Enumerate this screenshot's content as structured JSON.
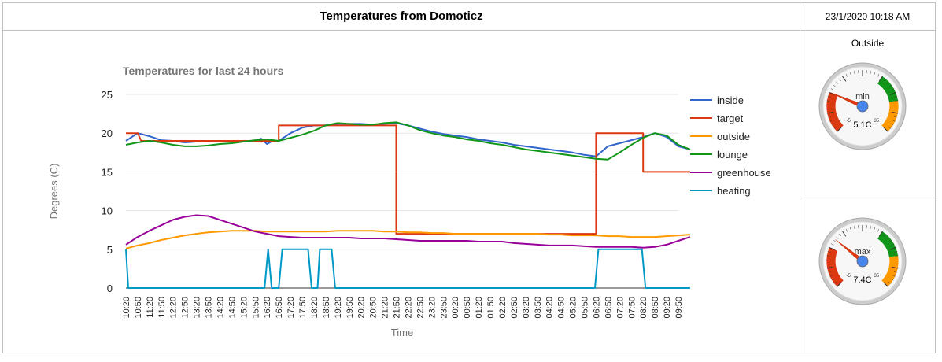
{
  "header": {
    "title": "Temperatures from Domoticz",
    "datetime": "23/1/2020 10:18 AM"
  },
  "gauges": {
    "section_title": "Outside",
    "items": [
      {
        "label": "min",
        "value": 5.1,
        "value_text": "5.1C",
        "min_tick": "-5",
        "max_tick": "35"
      },
      {
        "label": "max",
        "value": 7.4,
        "value_text": "7.4C",
        "min_tick": "-5",
        "max_tick": "35"
      }
    ],
    "scale": {
      "min": -5,
      "max": 35
    },
    "bands": [
      {
        "from": -5,
        "to": 5,
        "color": "#dc3912"
      },
      {
        "from": 20,
        "to": 27,
        "color": "#109618"
      },
      {
        "from": 27,
        "to": 35,
        "color": "#ff9900"
      }
    ]
  },
  "chart_data": {
    "type": "line",
    "title": "Temperatures for last 24 hours",
    "xlabel": "Time",
    "ylabel": "Degrees (C)",
    "ylim": [
      0,
      25
    ],
    "yticks": [
      0,
      5,
      10,
      15,
      20,
      25
    ],
    "grid": true,
    "legend": "right",
    "x": [
      "10:20",
      "10:50",
      "11:20",
      "11:50",
      "12:20",
      "12:50",
      "13:20",
      "13:50",
      "14:20",
      "14:50",
      "15:20",
      "15:50",
      "16:20",
      "16:50",
      "17:20",
      "17:50",
      "18:20",
      "18:50",
      "19:20",
      "19:50",
      "20:20",
      "20:50",
      "21:20",
      "21:50",
      "22:20",
      "22:50",
      "23:20",
      "23:50",
      "00:20",
      "00:50",
      "01:20",
      "01:50",
      "02:20",
      "02:50",
      "03:20",
      "03:50",
      "04:20",
      "04:50",
      "05:20",
      "05:50",
      "06:20",
      "06:50",
      "07:20",
      "07:50",
      "08:20",
      "08:50",
      "09:20",
      "09:50"
    ],
    "series": [
      {
        "name": "inside",
        "color": "#3366cc",
        "values": [
          [
            0,
            19.0
          ],
          [
            1,
            20.0
          ],
          [
            2,
            19.6
          ],
          [
            3,
            19.1
          ],
          [
            4,
            19.0
          ],
          [
            5,
            18.8
          ],
          [
            6,
            18.9
          ],
          [
            7,
            19.0
          ],
          [
            8,
            19.0
          ],
          [
            9,
            18.9
          ],
          [
            10,
            18.9
          ],
          [
            11,
            19.0
          ],
          [
            11.5,
            19.3
          ],
          [
            12,
            18.6
          ],
          [
            12.5,
            19.0
          ],
          [
            13,
            19.0
          ],
          [
            14,
            20.0
          ],
          [
            15,
            20.7
          ],
          [
            16,
            21.0
          ],
          [
            17,
            21.0
          ],
          [
            18,
            21.2
          ],
          [
            19,
            21.2
          ],
          [
            20,
            21.2
          ],
          [
            21,
            21.1
          ],
          [
            22,
            21.2
          ],
          [
            23,
            21.3
          ],
          [
            24,
            21.0
          ],
          [
            25,
            20.6
          ],
          [
            26,
            20.2
          ],
          [
            27,
            19.9
          ],
          [
            28,
            19.7
          ],
          [
            29,
            19.5
          ],
          [
            30,
            19.2
          ],
          [
            31,
            19.0
          ],
          [
            32,
            18.8
          ],
          [
            33,
            18.5
          ],
          [
            34,
            18.3
          ],
          [
            35,
            18.1
          ],
          [
            36,
            17.9
          ],
          [
            37,
            17.7
          ],
          [
            38,
            17.5
          ],
          [
            39,
            17.2
          ],
          [
            40,
            17.0
          ],
          [
            41,
            18.3
          ],
          [
            42,
            18.7
          ],
          [
            43,
            19.1
          ],
          [
            44,
            19.5
          ],
          [
            45,
            20.0
          ],
          [
            46,
            19.5
          ],
          [
            47,
            18.3
          ],
          [
            48,
            17.9
          ]
        ]
      },
      {
        "name": "target",
        "color": "#dc3912",
        "values": [
          [
            0,
            20
          ],
          [
            1,
            20
          ],
          [
            1.3,
            19
          ],
          [
            13,
            19
          ],
          [
            13,
            21
          ],
          [
            23,
            21
          ],
          [
            23,
            7
          ],
          [
            40,
            7
          ],
          [
            40,
            20
          ],
          [
            44,
            20
          ],
          [
            44,
            15
          ],
          [
            48,
            15
          ]
        ]
      },
      {
        "name": "outside",
        "color": "#ff9900",
        "values": [
          [
            0,
            5.1
          ],
          [
            1,
            5.5
          ],
          [
            2,
            5.8
          ],
          [
            3,
            6.2
          ],
          [
            4,
            6.5
          ],
          [
            5,
            6.8
          ],
          [
            6,
            7.0
          ],
          [
            7,
            7.2
          ],
          [
            8,
            7.3
          ],
          [
            9,
            7.4
          ],
          [
            10,
            7.4
          ],
          [
            11,
            7.4
          ],
          [
            12,
            7.3
          ],
          [
            13,
            7.3
          ],
          [
            14,
            7.3
          ],
          [
            15,
            7.3
          ],
          [
            16,
            7.3
          ],
          [
            17,
            7.3
          ],
          [
            18,
            7.4
          ],
          [
            19,
            7.4
          ],
          [
            20,
            7.4
          ],
          [
            21,
            7.4
          ],
          [
            22,
            7.3
          ],
          [
            23,
            7.3
          ],
          [
            24,
            7.2
          ],
          [
            25,
            7.2
          ],
          [
            26,
            7.1
          ],
          [
            27,
            7.1
          ],
          [
            28,
            7.0
          ],
          [
            29,
            7.0
          ],
          [
            30,
            7.0
          ],
          [
            31,
            7.0
          ],
          [
            32,
            7.0
          ],
          [
            33,
            7.0
          ],
          [
            34,
            7.0
          ],
          [
            35,
            7.0
          ],
          [
            36,
            6.9
          ],
          [
            37,
            6.9
          ],
          [
            38,
            6.8
          ],
          [
            39,
            6.8
          ],
          [
            40,
            6.8
          ],
          [
            41,
            6.7
          ],
          [
            42,
            6.7
          ],
          [
            43,
            6.6
          ],
          [
            44,
            6.6
          ],
          [
            45,
            6.6
          ],
          [
            46,
            6.7
          ],
          [
            47,
            6.8
          ],
          [
            48,
            6.9
          ]
        ]
      },
      {
        "name": "lounge",
        "color": "#109618",
        "values": [
          [
            0,
            18.5
          ],
          [
            1,
            18.8
          ],
          [
            2,
            19.0
          ],
          [
            3,
            18.8
          ],
          [
            4,
            18.5
          ],
          [
            5,
            18.3
          ],
          [
            6,
            18.3
          ],
          [
            7,
            18.4
          ],
          [
            8,
            18.6
          ],
          [
            9,
            18.7
          ],
          [
            10,
            18.9
          ],
          [
            11,
            19.1
          ],
          [
            12,
            19.2
          ],
          [
            13,
            19.0
          ],
          [
            14,
            19.4
          ],
          [
            15,
            19.8
          ],
          [
            16,
            20.3
          ],
          [
            17,
            21.0
          ],
          [
            18,
            21.3
          ],
          [
            19,
            21.2
          ],
          [
            20,
            21.1
          ],
          [
            21,
            21.1
          ],
          [
            22,
            21.3
          ],
          [
            23,
            21.4
          ],
          [
            24,
            21.0
          ],
          [
            25,
            20.4
          ],
          [
            26,
            20.0
          ],
          [
            27,
            19.7
          ],
          [
            28,
            19.5
          ],
          [
            29,
            19.2
          ],
          [
            30,
            19.0
          ],
          [
            31,
            18.7
          ],
          [
            32,
            18.5
          ],
          [
            33,
            18.2
          ],
          [
            34,
            17.9
          ],
          [
            35,
            17.7
          ],
          [
            36,
            17.5
          ],
          [
            37,
            17.3
          ],
          [
            38,
            17.1
          ],
          [
            39,
            16.9
          ],
          [
            40,
            16.7
          ],
          [
            41,
            16.6
          ],
          [
            42,
            17.5
          ],
          [
            43,
            18.5
          ],
          [
            44,
            19.4
          ],
          [
            45,
            20.0
          ],
          [
            46,
            19.7
          ],
          [
            47,
            18.5
          ],
          [
            48,
            17.9
          ]
        ]
      },
      {
        "name": "greenhouse",
        "color": "#990099",
        "values": [
          [
            0,
            5.6
          ],
          [
            1,
            6.6
          ],
          [
            2,
            7.4
          ],
          [
            3,
            8.1
          ],
          [
            4,
            8.8
          ],
          [
            5,
            9.2
          ],
          [
            6,
            9.4
          ],
          [
            7,
            9.3
          ],
          [
            8,
            8.8
          ],
          [
            9,
            8.3
          ],
          [
            10,
            7.8
          ],
          [
            11,
            7.3
          ],
          [
            12,
            7.0
          ],
          [
            13,
            6.7
          ],
          [
            14,
            6.6
          ],
          [
            15,
            6.5
          ],
          [
            16,
            6.5
          ],
          [
            17,
            6.5
          ],
          [
            18,
            6.5
          ],
          [
            19,
            6.5
          ],
          [
            20,
            6.4
          ],
          [
            21,
            6.4
          ],
          [
            22,
            6.4
          ],
          [
            23,
            6.3
          ],
          [
            24,
            6.2
          ],
          [
            25,
            6.1
          ],
          [
            26,
            6.1
          ],
          [
            27,
            6.1
          ],
          [
            28,
            6.1
          ],
          [
            29,
            6.1
          ],
          [
            30,
            6.0
          ],
          [
            31,
            6.0
          ],
          [
            32,
            6.0
          ],
          [
            33,
            5.8
          ],
          [
            34,
            5.7
          ],
          [
            35,
            5.6
          ],
          [
            36,
            5.5
          ],
          [
            37,
            5.5
          ],
          [
            38,
            5.5
          ],
          [
            39,
            5.4
          ],
          [
            40,
            5.3
          ],
          [
            41,
            5.3
          ],
          [
            42,
            5.3
          ],
          [
            43,
            5.3
          ],
          [
            44,
            5.2
          ],
          [
            45,
            5.3
          ],
          [
            46,
            5.6
          ],
          [
            47,
            6.1
          ],
          [
            48,
            6.6
          ]
        ]
      },
      {
        "name": "heating",
        "color": "#0099c6",
        "values": [
          [
            0,
            5
          ],
          [
            0.2,
            0
          ],
          [
            11.8,
            0
          ],
          [
            12.1,
            5
          ],
          [
            12.4,
            0
          ],
          [
            13.0,
            0
          ],
          [
            13.3,
            5
          ],
          [
            15.5,
            5
          ],
          [
            15.8,
            0
          ],
          [
            16.3,
            0
          ],
          [
            16.5,
            5
          ],
          [
            17.5,
            5
          ],
          [
            17.8,
            0
          ],
          [
            39.9,
            0
          ],
          [
            40.2,
            5
          ],
          [
            43.9,
            5
          ],
          [
            44.2,
            0
          ],
          [
            48,
            0
          ]
        ]
      }
    ]
  }
}
